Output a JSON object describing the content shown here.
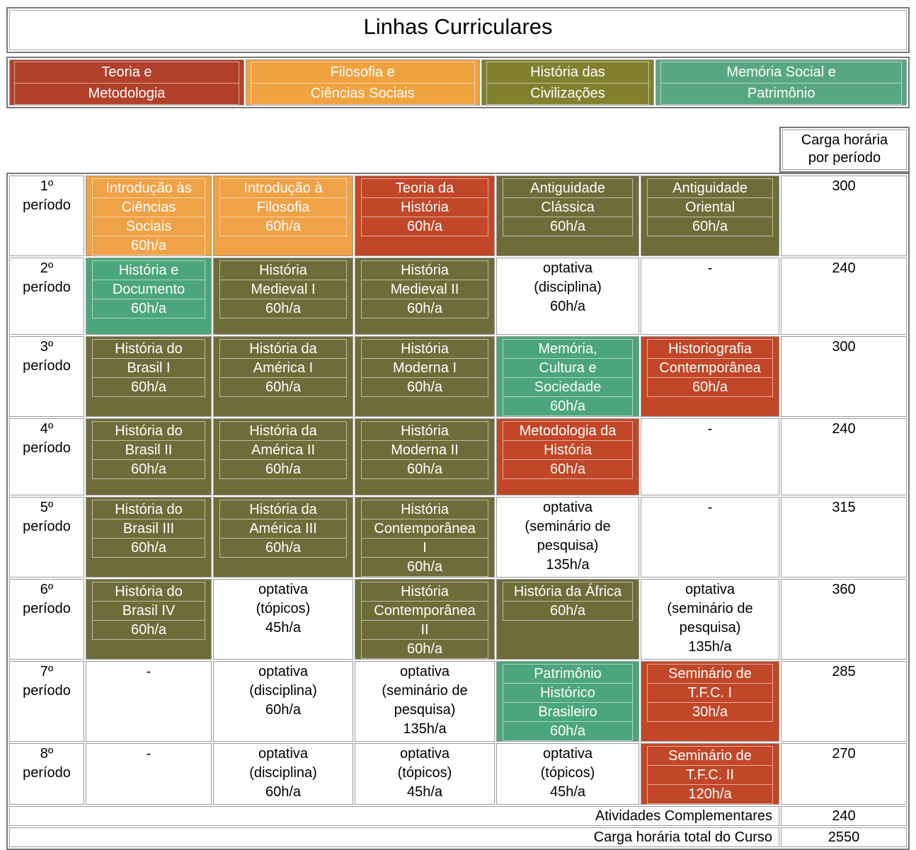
{
  "title": "Linhas Curriculares",
  "palette": {
    "red": "#c14728",
    "orange": "#f0a246",
    "olive": "#6e6d3a",
    "teal": "#4ca67b"
  },
  "legend": [
    {
      "lines": [
        "Teoria e",
        "Metodologia"
      ],
      "color": "#b2402a"
    },
    {
      "lines": [
        "Filosofia e",
        "Ciências Sociais"
      ],
      "color": "#f0a23f"
    },
    {
      "lines": [
        "História das",
        "Civilizações"
      ],
      "color": "#82802e"
    },
    {
      "lines": [
        "Memória Social e",
        "Patrimônio"
      ],
      "color": "#57a880"
    }
  ],
  "total_header_lines": [
    "Carga horária",
    "por período"
  ],
  "rows": [
    {
      "period": [
        "1º",
        "período"
      ],
      "total": "300",
      "cells": [
        {
          "type": "course",
          "color": "orange",
          "lines": [
            "Introdução às",
            "Ciências",
            "Sociais",
            "60h/a"
          ]
        },
        {
          "type": "course",
          "color": "orange",
          "lines": [
            "Introdução à",
            "Filosofia",
            "60h/a"
          ]
        },
        {
          "type": "course",
          "color": "red",
          "lines": [
            "Teoria da",
            "História",
            "60h/a"
          ]
        },
        {
          "type": "course",
          "color": "olive",
          "lines": [
            "Antiguidade",
            "Clássica",
            "60h/a"
          ]
        },
        {
          "type": "course",
          "color": "olive",
          "lines": [
            "Antiguidade",
            "Oriental",
            "60h/a"
          ]
        }
      ]
    },
    {
      "period": [
        "2º",
        "período"
      ],
      "total": "240",
      "cells": [
        {
          "type": "course",
          "color": "teal",
          "lines": [
            "História e",
            "Documento",
            "60h/a"
          ]
        },
        {
          "type": "course",
          "color": "olive",
          "lines": [
            "História",
            "Medieval I",
            "60h/a"
          ]
        },
        {
          "type": "course",
          "color": "olive",
          "lines": [
            "História",
            "Medieval II",
            "60h/a"
          ]
        },
        {
          "type": "text",
          "lines": [
            "optativa",
            "(disciplina)",
            "60h/a"
          ]
        },
        {
          "type": "dash",
          "lines": [
            "-"
          ]
        }
      ]
    },
    {
      "period": [
        "3º",
        "período"
      ],
      "total": "300",
      "cells": [
        {
          "type": "course",
          "color": "olive",
          "lines": [
            "História do",
            "Brasil I",
            "60h/a"
          ]
        },
        {
          "type": "course",
          "color": "olive",
          "lines": [
            "História da",
            "América I",
            "60h/a"
          ]
        },
        {
          "type": "course",
          "color": "olive",
          "lines": [
            "História",
            "Moderna I",
            "60h/a"
          ]
        },
        {
          "type": "course",
          "color": "teal",
          "lines": [
            "Memória,",
            "Cultura e",
            "Sociedade",
            "60h/a"
          ]
        },
        {
          "type": "course",
          "color": "red",
          "lines": [
            "Historiografia",
            "Contemporânea",
            "60h/a"
          ]
        }
      ]
    },
    {
      "period": [
        "4º",
        "período"
      ],
      "total": "240",
      "cells": [
        {
          "type": "course",
          "color": "olive",
          "lines": [
            "História do",
            "Brasil II",
            "60h/a"
          ]
        },
        {
          "type": "course",
          "color": "olive",
          "lines": [
            "História da",
            "América II",
            "60h/a"
          ]
        },
        {
          "type": "course",
          "color": "olive",
          "lines": [
            "História",
            "Moderna II",
            "60h/a"
          ]
        },
        {
          "type": "course",
          "color": "red",
          "lines": [
            "Metodologia da",
            "História",
            "60h/a"
          ]
        },
        {
          "type": "dash",
          "lines": [
            "-"
          ]
        }
      ]
    },
    {
      "period": [
        "5º",
        "período"
      ],
      "total": "315",
      "cells": [
        {
          "type": "course",
          "color": "olive",
          "lines": [
            "História do",
            "Brasil III",
            "60h/a"
          ]
        },
        {
          "type": "course",
          "color": "olive",
          "lines": [
            "História da",
            "América III",
            "60h/a"
          ]
        },
        {
          "type": "course",
          "color": "olive",
          "lines": [
            "História",
            "Contemporânea",
            "I",
            "60h/a"
          ]
        },
        {
          "type": "text",
          "lines": [
            "optativa",
            "(seminário de",
            "pesquisa)",
            "135h/a"
          ]
        },
        {
          "type": "dash",
          "lines": [
            "-"
          ]
        }
      ]
    },
    {
      "period": [
        "6º",
        "período"
      ],
      "total": "360",
      "cells": [
        {
          "type": "course",
          "color": "olive",
          "lines": [
            "História do",
            "Brasil IV",
            "60h/a"
          ]
        },
        {
          "type": "text",
          "lines": [
            "optativa",
            "(tópicos)",
            "45h/a"
          ]
        },
        {
          "type": "course",
          "color": "olive",
          "lines": [
            "História",
            "Contemporânea",
            "II",
            "60h/a"
          ]
        },
        {
          "type": "course",
          "color": "olive",
          "lines": [
            "História da África",
            "60h/a"
          ]
        },
        {
          "type": "text",
          "lines": [
            "optativa",
            "(seminário de",
            "pesquisa)",
            "135h/a"
          ]
        }
      ]
    },
    {
      "period": [
        "7º",
        "período"
      ],
      "total": "285",
      "cells": [
        {
          "type": "dash",
          "lines": [
            "-"
          ]
        },
        {
          "type": "text",
          "lines": [
            "optativa",
            "(disciplina)",
            "60h/a"
          ]
        },
        {
          "type": "text",
          "lines": [
            "optativa",
            "(seminário de",
            "pesquisa)",
            "135h/a"
          ]
        },
        {
          "type": "course",
          "color": "teal",
          "lines": [
            "Patrimônio",
            "Histórico",
            "Brasileiro",
            "60h/a"
          ]
        },
        {
          "type": "course",
          "color": "red",
          "lines": [
            "Seminário de",
            "T.F.C. I",
            "30h/a"
          ]
        }
      ]
    },
    {
      "period": [
        "8º",
        "período"
      ],
      "total": "270",
      "cells": [
        {
          "type": "dash",
          "lines": [
            "-"
          ]
        },
        {
          "type": "text",
          "lines": [
            "optativa",
            "(disciplina)",
            "60h/a"
          ]
        },
        {
          "type": "text",
          "lines": [
            "optativa",
            "(tópicos)",
            "45h/a"
          ]
        },
        {
          "type": "text",
          "lines": [
            "optativa",
            "(tópicos)",
            "45h/a"
          ]
        },
        {
          "type": "course",
          "color": "red",
          "lines": [
            "Seminário de",
            "T.F.C. II",
            "120h/a"
          ]
        }
      ]
    }
  ],
  "footers": [
    {
      "label": "Atividades Complementares",
      "value": "240"
    },
    {
      "label": "Carga horária total do Curso",
      "value": "2550"
    }
  ]
}
